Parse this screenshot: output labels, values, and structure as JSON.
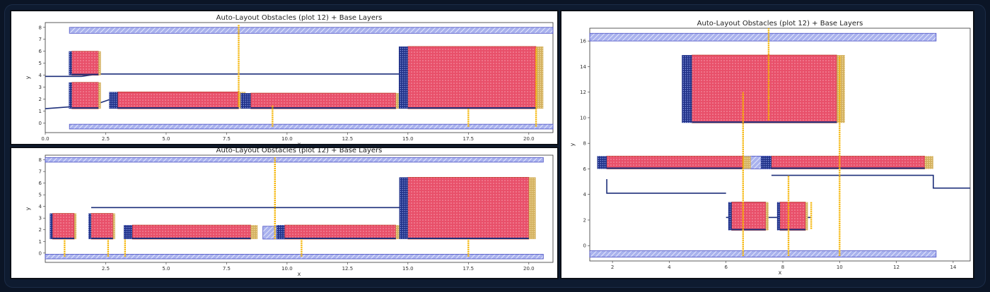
{
  "colors": {
    "obstacle_fill": "#e8506a",
    "obstacle_edge": "#c0392b",
    "base_fill": "#a9b2ee",
    "base_edge": "#4a4fc4",
    "tab_dark": "#22338a",
    "route": "#1d2f7a",
    "connector": "#f5b400",
    "pin": "#d4b160"
  },
  "panels": [
    {
      "id": "top-left",
      "title": "Auto-Layout Obstacles (plot 12) + Base Layers",
      "xlabel": "x",
      "ylabel": "y",
      "xlim": [
        0,
        21
      ],
      "ylim": [
        -0.8,
        8.4
      ],
      "xticks": [
        "0.0",
        "2.5",
        "5.0",
        "7.5",
        "10.0",
        "12.5",
        "15.0",
        "17.5",
        "20.0"
      ],
      "yticks": [
        "0",
        "1",
        "2",
        "3",
        "4",
        "5",
        "6",
        "7",
        "8"
      ]
    },
    {
      "id": "bottom-left",
      "title": "Auto-Layout Obstacles (plot 12) + Base Layers",
      "xlabel": "x",
      "ylabel": "y",
      "xlim": [
        0,
        21
      ],
      "ylim": [
        -0.8,
        8.4
      ],
      "xticks": [
        "2.5",
        "5.0",
        "7.5",
        "10.0",
        "12.5",
        "15.0",
        "17.5",
        "20.0"
      ],
      "yticks": [
        "0",
        "1",
        "2",
        "3",
        "4",
        "5",
        "6",
        "7",
        "8"
      ]
    },
    {
      "id": "right",
      "title": "Auto-Layout Obstacles (plot 12) + Base Layers",
      "xlabel": "x",
      "ylabel": "y",
      "xlim": [
        1.2,
        14.6
      ],
      "ylim": [
        -1.2,
        17
      ],
      "xticks": [
        "2",
        "4",
        "6",
        "8",
        "10",
        "12",
        "14"
      ],
      "yticks": [
        "0",
        "2",
        "4",
        "6",
        "8",
        "10",
        "12",
        "14",
        "16"
      ]
    }
  ]
}
